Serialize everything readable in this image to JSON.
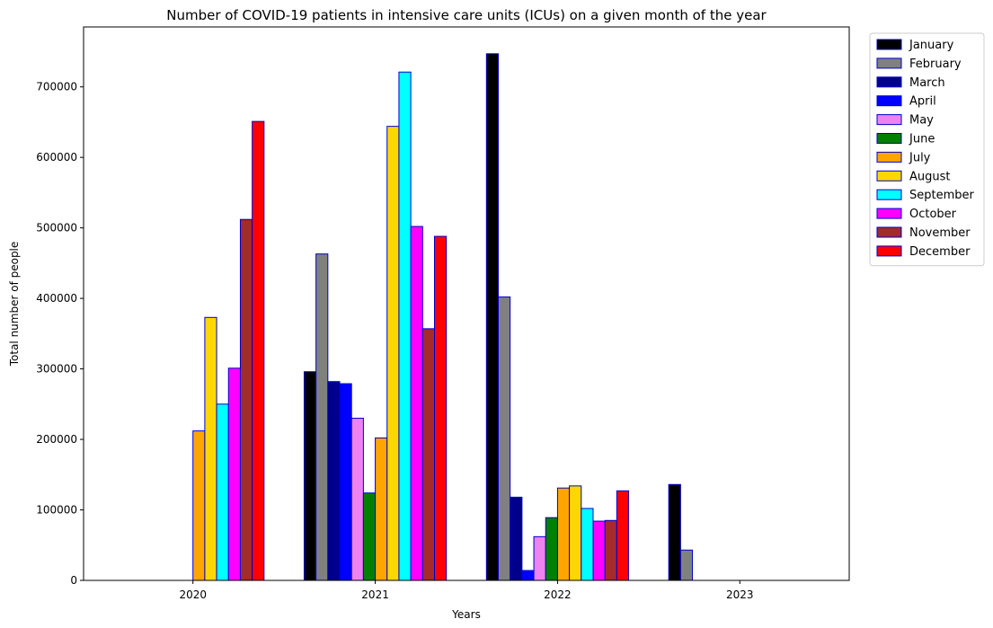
{
  "chart_data": {
    "type": "bar",
    "title": "Number of COVID-19 patients in intensive care units (ICUs) on a given month of the year",
    "xlabel": "Years",
    "ylabel": "Total number of people",
    "categories": [
      "2020",
      "2021",
      "2022",
      "2023"
    ],
    "ylim": [
      0,
      785000
    ],
    "yticks": [
      0,
      100000,
      200000,
      300000,
      400000,
      500000,
      600000,
      700000
    ],
    "ytick_labels": [
      "0",
      "100000",
      "200000",
      "300000",
      "400000",
      "500000",
      "600000",
      "700000"
    ],
    "grid": false,
    "legend_position": "outside-top-right",
    "bar_edge_color": "#0000cc",
    "series": [
      {
        "name": "January",
        "color": "#000000",
        "values": [
          0,
          296000,
          747000,
          136000
        ]
      },
      {
        "name": "February",
        "color": "#808080",
        "values": [
          0,
          463000,
          402000,
          43000
        ]
      },
      {
        "name": "March",
        "color": "#00008b",
        "values": [
          0,
          282000,
          118000,
          0
        ]
      },
      {
        "name": "April",
        "color": "#0000ff",
        "values": [
          0,
          279000,
          14000,
          0
        ]
      },
      {
        "name": "May",
        "color": "#ee82ee",
        "values": [
          0,
          230000,
          62000,
          0
        ]
      },
      {
        "name": "June",
        "color": "#008000",
        "values": [
          0,
          124000,
          89000,
          0
        ]
      },
      {
        "name": "July",
        "color": "#ffa500",
        "values": [
          212000,
          202000,
          131000,
          0
        ]
      },
      {
        "name": "August",
        "color": "#ffd700",
        "values": [
          373000,
          644000,
          134000,
          0
        ]
      },
      {
        "name": "September",
        "color": "#00ffff",
        "values": [
          250000,
          721000,
          102000,
          0
        ]
      },
      {
        "name": "October",
        "color": "#ff00ff",
        "values": [
          301000,
          502000,
          84000,
          0
        ]
      },
      {
        "name": "November",
        "color": "#a52a2a",
        "values": [
          512000,
          357000,
          85000,
          0
        ]
      },
      {
        "name": "December",
        "color": "#ff0000",
        "values": [
          651000,
          488000,
          127000,
          0
        ]
      }
    ]
  }
}
